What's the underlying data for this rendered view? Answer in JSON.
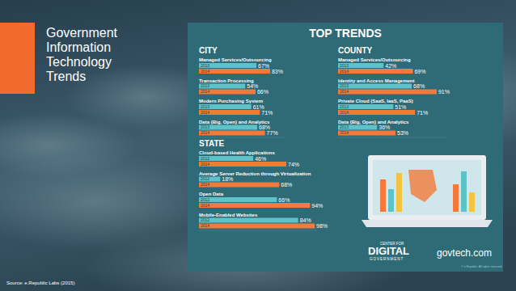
{
  "slide": {
    "title_lines": [
      "Government",
      "Information",
      "Technology",
      "Trends"
    ],
    "source": "Source: e.Republic Labs (2015)"
  },
  "infographic": {
    "title": "TOP TRENDS",
    "logo_top": "CENTER FOR",
    "logo_main": "DIGITAL",
    "logo_bottom": "GOVERNMENT",
    "site": "govtech.com",
    "copyright": "© e.Republic. All rights reserved."
  },
  "chart_data": [
    {
      "type": "bar",
      "title": "CITY",
      "orientation": "horizontal",
      "data_labels": true,
      "tick_labels": false,
      "xlim": [
        0,
        100
      ],
      "categories": [
        "Managed Services/Outsourcing",
        "Transaction Processing",
        "Modern Purchasing System",
        "Data (Big, Open) and Analytics"
      ],
      "series": [
        {
          "name": "2013",
          "color": "#5ec3c8",
          "values": [
            67,
            54,
            61,
            68
          ],
          "value_labels": [
            "67%",
            "54%",
            "61%",
            "68%"
          ]
        },
        {
          "name": "2014",
          "color": "#f37a3b",
          "values": [
            83,
            66,
            71,
            77
          ],
          "value_labels": [
            "83%",
            "66%",
            "71%",
            "77%"
          ]
        }
      ]
    },
    {
      "type": "bar",
      "title": "COUNTY",
      "orientation": "horizontal",
      "data_labels": true,
      "tick_labels": false,
      "xlim": [
        0,
        100
      ],
      "categories": [
        "Managed Services/Outsourcing",
        "Identity and Access Management",
        "Private Cloud (SaaS, IaaS, PaaS)",
        "Data (Big, Open) and Analytics"
      ],
      "series": [
        {
          "name": "2013",
          "color": "#5ec3c8",
          "values": [
            42,
            68,
            51,
            36
          ],
          "value_labels": [
            "42%",
            "68%",
            "51%",
            "36%"
          ]
        },
        {
          "name": "2014",
          "color": "#f37a3b",
          "values": [
            69,
            91,
            71,
            53
          ],
          "value_labels": [
            "69%",
            "91%",
            "71%",
            "53%"
          ]
        }
      ]
    },
    {
      "type": "bar",
      "title": "STATE",
      "orientation": "horizontal",
      "data_labels": true,
      "tick_labels": false,
      "xlim": [
        0,
        100
      ],
      "categories": [
        "Cloud-based Health Applications",
        "Average Server Reduction through Virtualization",
        "Open Data",
        "Mobile-Enabled Websites"
      ],
      "series": [
        {
          "name": "2012",
          "color": "#5ec3c8",
          "values": [
            46,
            18,
            66,
            84
          ],
          "value_labels": [
            "46%",
            "18%",
            "66%",
            "84%"
          ]
        },
        {
          "name": "2014",
          "color": "#f37a3b",
          "values": [
            74,
            68,
            94,
            98
          ],
          "value_labels": [
            "74%",
            "68%",
            "94%",
            "98%"
          ]
        }
      ]
    }
  ]
}
